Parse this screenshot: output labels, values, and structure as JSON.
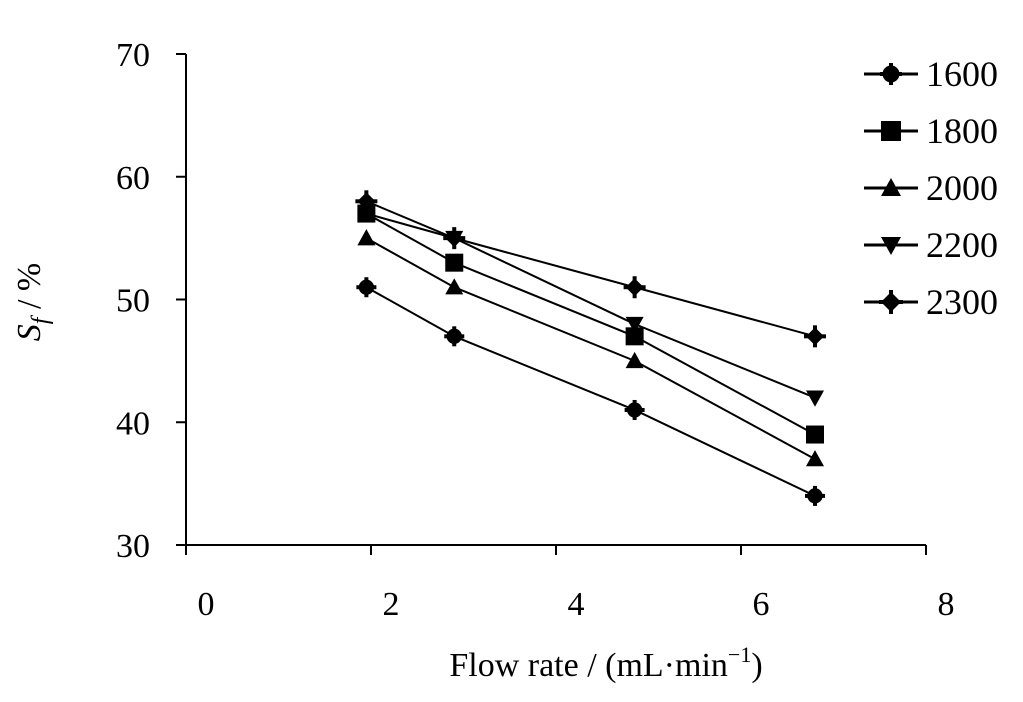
{
  "chart_data": {
    "type": "line",
    "title": "",
    "xlabel": {
      "main": "Flow rate / (mL·min",
      "sup": "−1",
      "close": ")"
    },
    "ylabel": {
      "main": "S",
      "sub": "f",
      "rest": " / %"
    },
    "xlim": [
      0,
      8
    ],
    "ylim": [
      30,
      70
    ],
    "xticks": [
      0,
      2,
      4,
      6,
      8
    ],
    "yticks": [
      30,
      40,
      50,
      60,
      70
    ],
    "grid": false,
    "legend_position": "top-right",
    "x": [
      1.95,
      2.9,
      4.85,
      6.8
    ],
    "series": [
      {
        "name": "1600",
        "marker": "circle",
        "values": [
          51,
          47,
          41,
          34
        ]
      },
      {
        "name": "1800",
        "marker": "square",
        "values": [
          57,
          53,
          47,
          39
        ]
      },
      {
        "name": "2000",
        "marker": "triangle-up",
        "values": [
          55,
          51,
          45,
          37
        ]
      },
      {
        "name": "2200",
        "marker": "triangle-down",
        "values": [
          57,
          55,
          48,
          42
        ]
      },
      {
        "name": "2300",
        "marker": "diamond",
        "values": [
          58,
          55,
          51,
          47
        ]
      }
    ]
  }
}
